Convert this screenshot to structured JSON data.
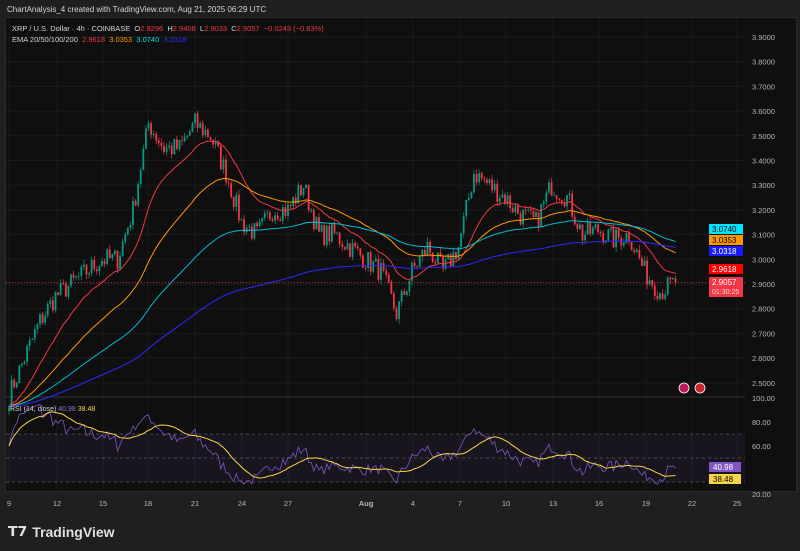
{
  "header": {
    "credit": "ChartAnalysis_4 created with TradingView.com, Aug 21, 2025 06:29 UTC"
  },
  "legend": {
    "symbol": "XRP / U.S. Dollar · 4h · COINBASE",
    "o_label": "O",
    "o": "2.9296",
    "h_label": "H",
    "h": "2.9408",
    "l_label": "L",
    "l": "2.9033",
    "c_label": "C",
    "c": "2.9057",
    "change": "−0.0243 (−0.83%)",
    "ema_label": "EMA 20/50/100/200",
    "ema20": "2.9618",
    "ema50": "3.0353",
    "ema100": "3.0740",
    "ema200": "3.0318"
  },
  "rsi": {
    "label": "RSI (14, close)",
    "value": "40.98",
    "ma": "38.48"
  },
  "price_tag": {
    "price": "2.9057",
    "countdown": "01:30:25"
  },
  "brand": "TradingView",
  "chart_data": {
    "type": "candlestick",
    "colors": {
      "up": "#089981",
      "down": "#f23645",
      "ema20": "#f23645",
      "ema50": "#ff9800",
      "ema100": "#00bcd4",
      "ema200": "#2a2aff",
      "rsi": "#7e57c2",
      "rsi_ma": "#f7d44a"
    },
    "price_axis": {
      "ticks": [
        "3.9000",
        "3.8000",
        "3.7000",
        "3.6000",
        "3.5000",
        "3.4000",
        "3.3000",
        "3.2000",
        "3.1000",
        "3.0000",
        "2.9000",
        "2.8000",
        "2.7000",
        "2.6000",
        "2.5000"
      ],
      "range": [
        2.45,
        3.95
      ]
    },
    "rsi_axis": {
      "ticks": [
        "100.00",
        "80.00",
        "60.00",
        "20.00"
      ],
      "bands": [
        70,
        50,
        30
      ]
    },
    "x_ticks": [
      "9",
      "12",
      "15",
      "18",
      "21",
      "24",
      "27",
      "Aug",
      "4",
      "7",
      "10",
      "13",
      "16",
      "19",
      "22",
      "25"
    ],
    "daily_closes_approx": {
      "start": "Jul 9",
      "values": [
        2.45,
        2.6,
        2.75,
        2.85,
        2.9,
        2.95,
        3.0,
        3.0,
        3.2,
        3.55,
        3.45,
        3.45,
        3.55,
        3.5,
        3.35,
        3.15,
        3.1,
        3.2,
        3.2,
        3.3,
        3.1,
        3.1,
        3.05,
        3.0,
        2.95,
        2.78,
        2.95,
        3.05,
        2.95,
        3.05,
        3.35,
        3.3,
        3.25,
        3.18,
        3.15,
        3.3,
        3.25,
        3.1,
        3.12,
        3.08,
        3.1,
        2.95,
        2.87,
        2.9057
      ]
    }
  }
}
